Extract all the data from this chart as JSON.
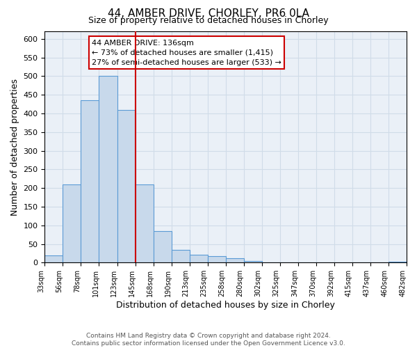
{
  "title": "44, AMBER DRIVE, CHORLEY, PR6 0LA",
  "subtitle": "Size of property relative to detached houses in Chorley",
  "xlabel": "Distribution of detached houses by size in Chorley",
  "ylabel": "Number of detached properties",
  "bin_labels": [
    "33sqm",
    "56sqm",
    "78sqm",
    "101sqm",
    "123sqm",
    "145sqm",
    "168sqm",
    "190sqm",
    "213sqm",
    "235sqm",
    "258sqm",
    "280sqm",
    "302sqm",
    "325sqm",
    "347sqm",
    "370sqm",
    "392sqm",
    "415sqm",
    "437sqm",
    "460sqm",
    "482sqm"
  ],
  "bar_heights": [
    20,
    210,
    435,
    500,
    410,
    210,
    85,
    35,
    22,
    18,
    12,
    5,
    0,
    0,
    0,
    0,
    0,
    0,
    0,
    3
  ],
  "bar_color": "#c8d9eb",
  "bar_edge_color": "#5b9bd5",
  "vline_color": "#cc0000",
  "ylim": [
    0,
    620
  ],
  "yticks": [
    0,
    50,
    100,
    150,
    200,
    250,
    300,
    350,
    400,
    450,
    500,
    550,
    600
  ],
  "annotation_title": "44 AMBER DRIVE: 136sqm",
  "annotation_line1": "← 73% of detached houses are smaller (1,415)",
  "annotation_line2": "27% of semi-detached houses are larger (533) →",
  "annotation_box_color": "#ffffff",
  "annotation_box_edge": "#cc0000",
  "footer_line1": "Contains HM Land Registry data © Crown copyright and database right 2024.",
  "footer_line2": "Contains public sector information licensed under the Open Government Licence v3.0.",
  "grid_color": "#d0dce8",
  "background_color": "#eaf0f7",
  "vline_pos": 5
}
